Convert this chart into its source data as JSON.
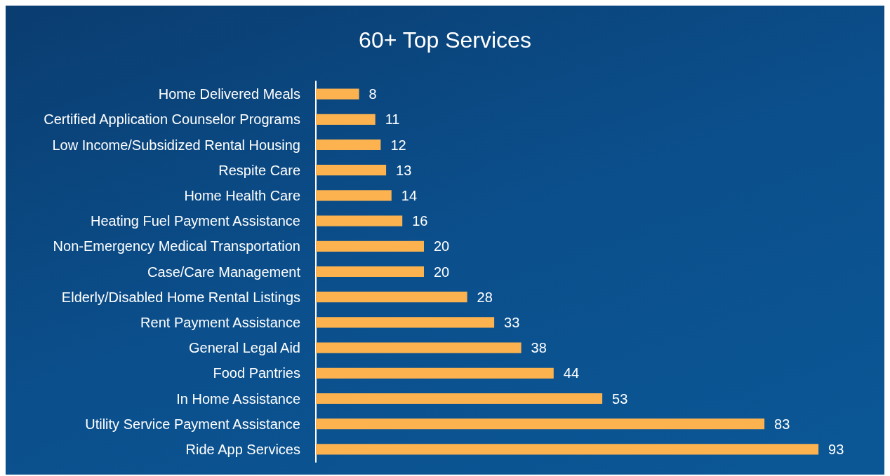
{
  "chart_data": {
    "type": "bar",
    "title": "60+ Top Services",
    "orientation": "horizontal",
    "categories": [
      "Home Delivered Meals",
      "Certified Application Counselor Programs",
      "Low Income/Subsidized Rental Housing",
      "Respite Care",
      "Home Health Care",
      "Heating Fuel Payment Assistance",
      "Non-Emergency Medical Transportation",
      "Case/Care Management",
      "Elderly/Disabled Home Rental Listings",
      "Rent Payment Assistance",
      "General Legal Aid",
      "Food Pantries",
      "In Home Assistance",
      "Utility Service Payment Assistance",
      "Ride App Services"
    ],
    "values": [
      8,
      11,
      12,
      13,
      14,
      16,
      20,
      20,
      28,
      33,
      38,
      44,
      53,
      83,
      93
    ],
    "color": "#fbb24f",
    "data_labels": true,
    "tick_labels": "y"
  }
}
